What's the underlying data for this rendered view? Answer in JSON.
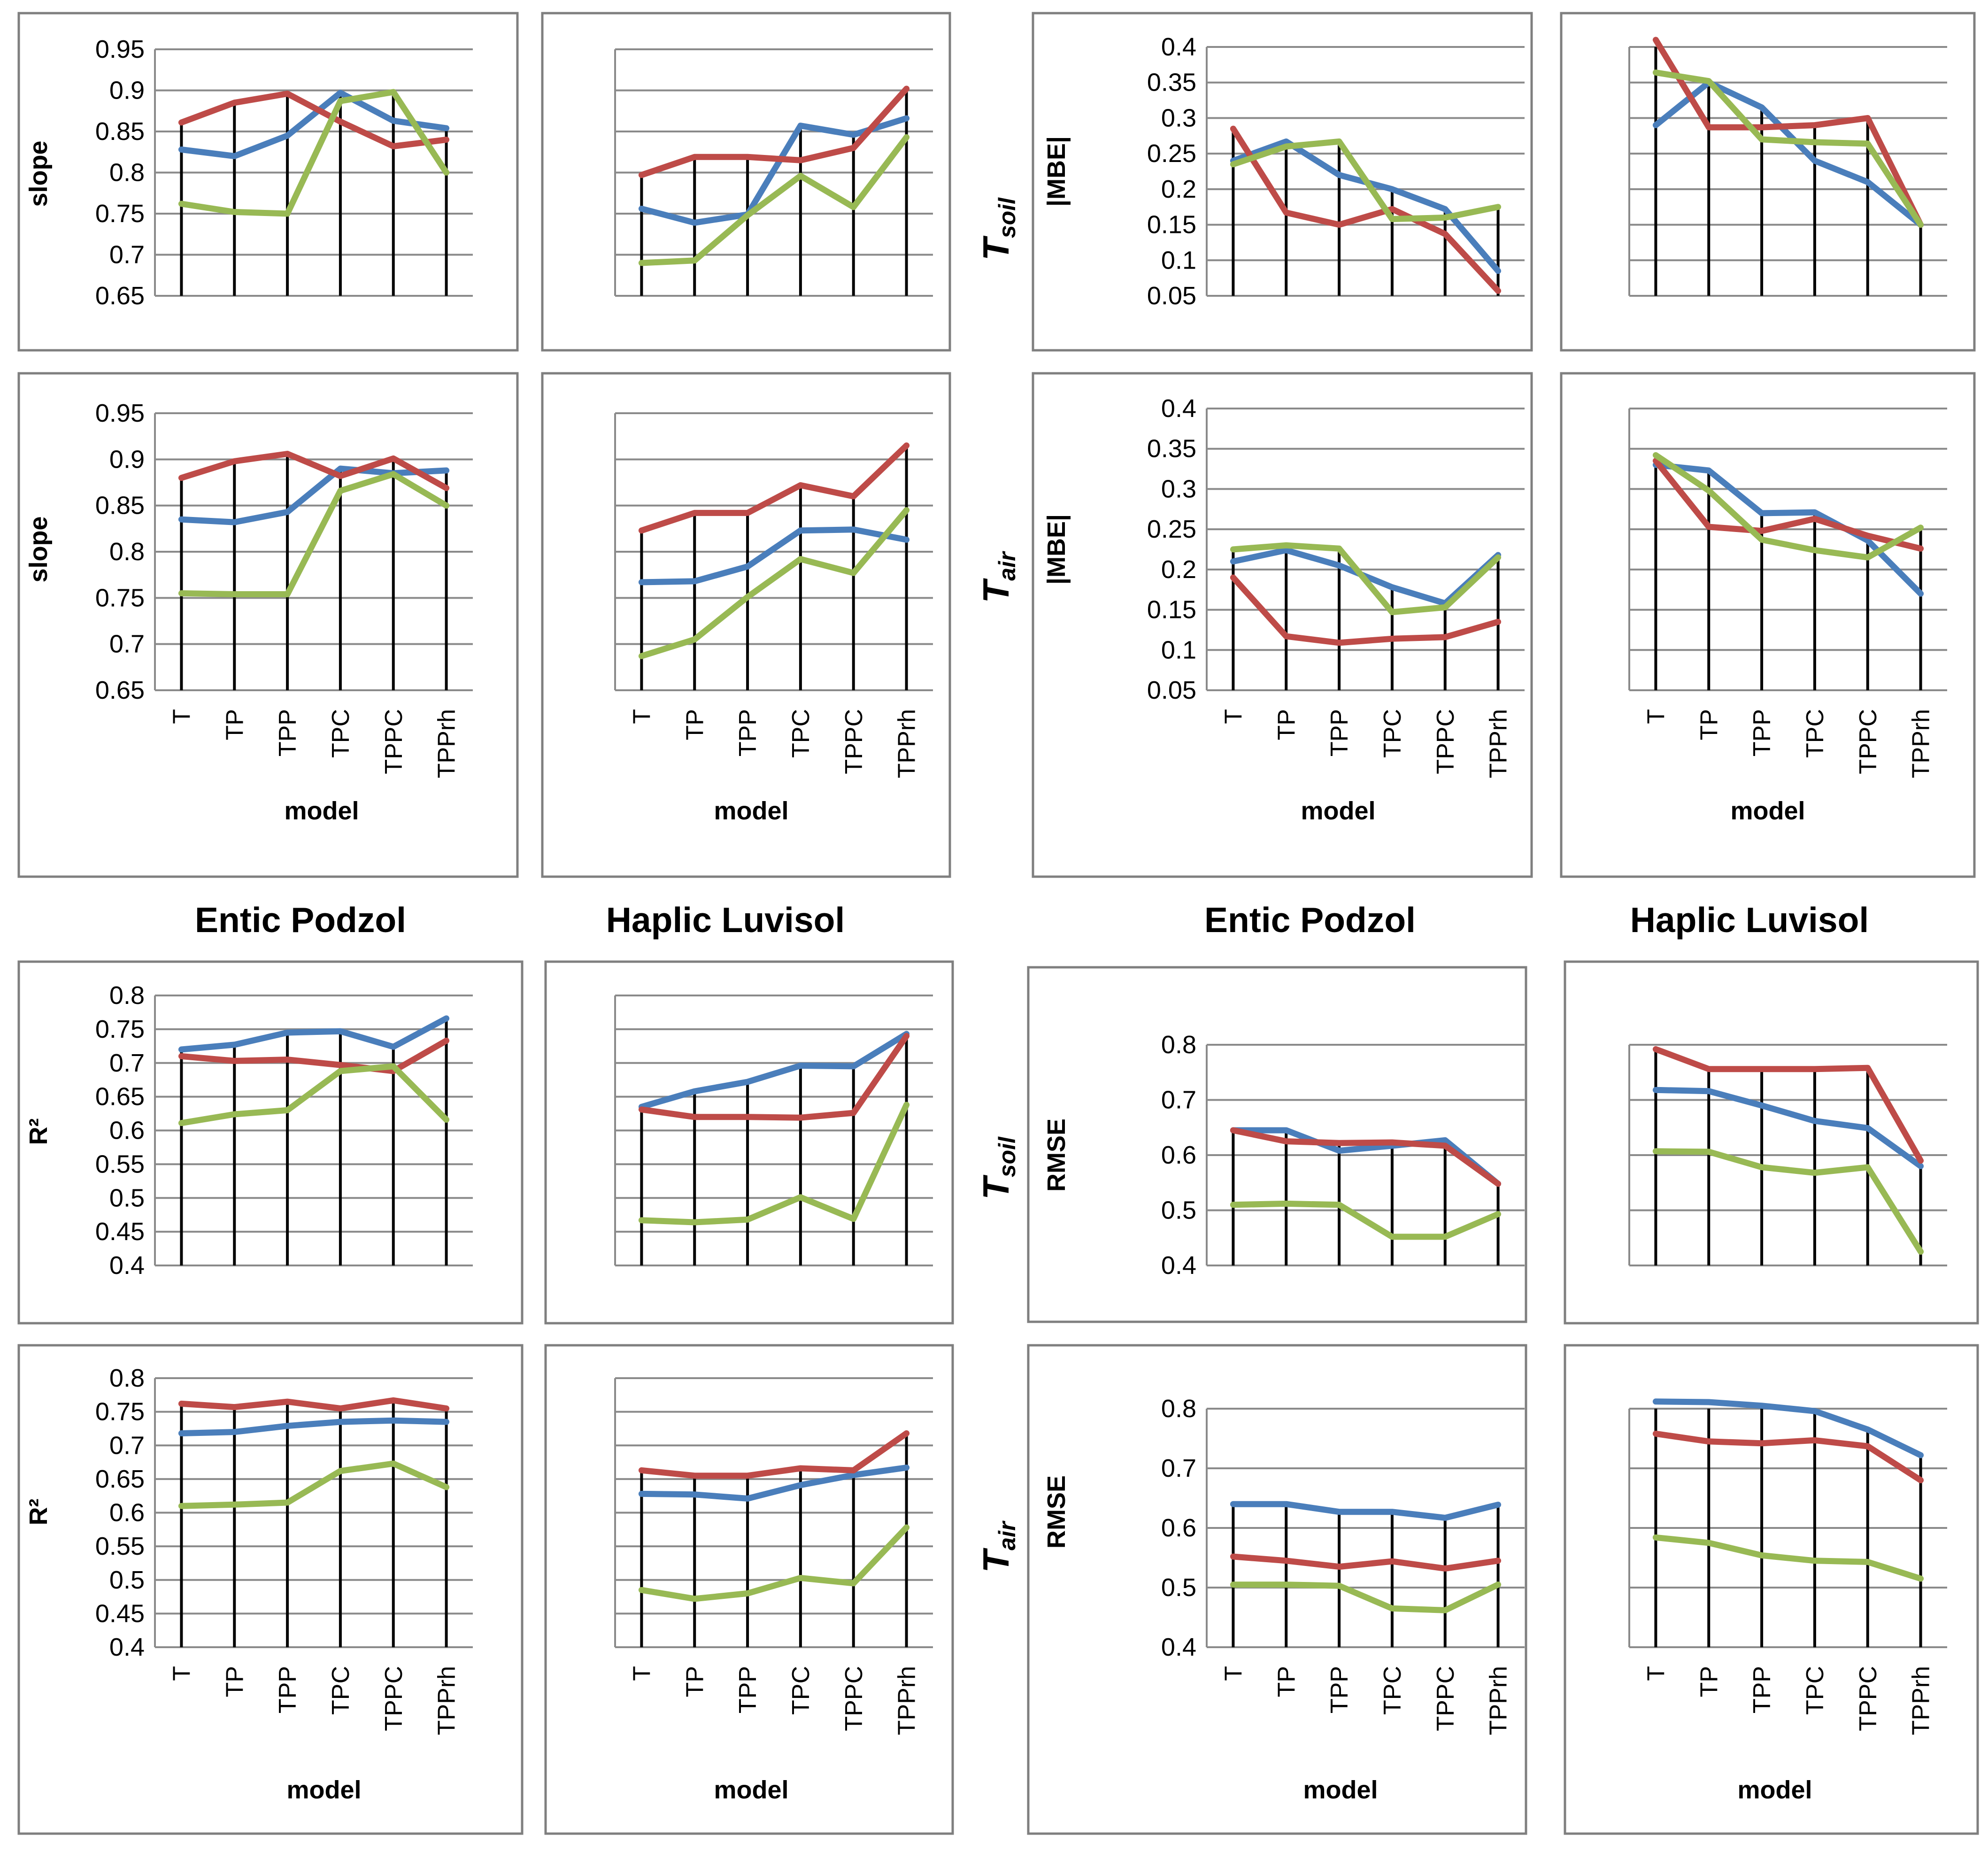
{
  "chart_data": [
    {
      "id": "slope-tsoil-entic",
      "type": "line",
      "ylabel": "slope",
      "xlabel": "",
      "ylim": [
        0.65,
        0.95
      ],
      "yticks": [
        "0.65",
        "0.7",
        "0.75",
        "0.8",
        "0.85",
        "0.9",
        "0.95"
      ],
      "categories": [
        "T",
        "TP",
        "TPP",
        "TPC",
        "TPPC",
        "TPPrh"
      ],
      "show_xticks": false,
      "series": [
        {
          "name": "blue",
          "color": "#4A7EBB",
          "values": [
            0.828,
            0.82,
            0.845,
            0.897,
            0.863,
            0.854
          ]
        },
        {
          "name": "red",
          "color": "#BE4B48",
          "values": [
            0.861,
            0.885,
            0.896,
            0.862,
            0.832,
            0.84
          ]
        },
        {
          "name": "green",
          "color": "#98B954",
          "values": [
            0.762,
            0.752,
            0.75,
            0.887,
            0.898,
            0.8
          ]
        }
      ]
    },
    {
      "id": "slope-tsoil-haplic",
      "type": "line",
      "ylabel": "",
      "xlabel": "",
      "ylim": [
        0.65,
        0.95
      ],
      "yticks": [],
      "categories": [
        "T",
        "TP",
        "TPP",
        "TPC",
        "TPPC",
        "TPPrh"
      ],
      "show_xticks": false,
      "series": [
        {
          "name": "blue",
          "color": "#4A7EBB",
          "values": [
            0.756,
            0.739,
            0.749,
            0.857,
            0.846,
            0.866
          ]
        },
        {
          "name": "red",
          "color": "#BE4B48",
          "values": [
            0.797,
            0.819,
            0.819,
            0.815,
            0.83,
            0.902
          ]
        },
        {
          "name": "green",
          "color": "#98B954",
          "values": [
            0.69,
            0.693,
            0.748,
            0.796,
            0.758,
            0.843
          ]
        }
      ]
    },
    {
      "id": "mbe-tsoil-entic",
      "type": "line",
      "ylabel": "|MBE|",
      "xlabel": "",
      "ylim": [
        0.05,
        0.4
      ],
      "yticks": [
        "0.05",
        "0.1",
        "0.15",
        "0.2",
        "0.25",
        "0.3",
        "0.35",
        "0.4"
      ],
      "categories": [
        "T",
        "TP",
        "TPP",
        "TPC",
        "TPPC",
        "TPPrh"
      ],
      "show_xticks": false,
      "series": [
        {
          "name": "blue",
          "color": "#4A7EBB",
          "values": [
            0.24,
            0.267,
            0.22,
            0.2,
            0.172,
            0.085
          ]
        },
        {
          "name": "red",
          "color": "#BE4B48",
          "values": [
            0.285,
            0.167,
            0.15,
            0.172,
            0.137,
            0.057
          ]
        },
        {
          "name": "green",
          "color": "#98B954",
          "values": [
            0.235,
            0.26,
            0.267,
            0.158,
            0.16,
            0.175
          ]
        }
      ]
    },
    {
      "id": "mbe-tsoil-haplic",
      "type": "line",
      "ylabel": "",
      "xlabel": "",
      "ylim": [
        0.05,
        0.4
      ],
      "yticks": [],
      "categories": [
        "T",
        "TP",
        "TPP",
        "TPC",
        "TPPC",
        "TPPrh"
      ],
      "show_xticks": false,
      "series": [
        {
          "name": "blue",
          "color": "#4A7EBB",
          "values": [
            0.29,
            0.35,
            0.315,
            0.24,
            0.21,
            0.15
          ]
        },
        {
          "name": "red",
          "color": "#BE4B48",
          "values": [
            0.41,
            0.287,
            0.287,
            0.29,
            0.3,
            0.15
          ]
        },
        {
          "name": "green",
          "color": "#98B954",
          "values": [
            0.364,
            0.352,
            0.27,
            0.266,
            0.264,
            0.15
          ]
        }
      ]
    },
    {
      "id": "slope-tair-entic",
      "type": "line",
      "ylabel": "slope",
      "xlabel": "model",
      "ylim": [
        0.65,
        0.95
      ],
      "yticks": [
        "0.65",
        "0.7",
        "0.75",
        "0.8",
        "0.85",
        "0.9",
        "0.95"
      ],
      "categories": [
        "T",
        "TP",
        "TPP",
        "TPC",
        "TPPC",
        "TPPrh"
      ],
      "show_xticks": true,
      "series": [
        {
          "name": "blue",
          "color": "#4A7EBB",
          "values": [
            0.835,
            0.832,
            0.843,
            0.89,
            0.885,
            0.888
          ]
        },
        {
          "name": "red",
          "color": "#BE4B48",
          "values": [
            0.88,
            0.898,
            0.906,
            0.882,
            0.901,
            0.869
          ]
        },
        {
          "name": "green",
          "color": "#98B954",
          "values": [
            0.755,
            0.754,
            0.754,
            0.866,
            0.884,
            0.85
          ]
        }
      ]
    },
    {
      "id": "slope-tair-haplic",
      "type": "line",
      "ylabel": "",
      "xlabel": "model",
      "ylim": [
        0.65,
        0.95
      ],
      "yticks": [],
      "categories": [
        "T",
        "TP",
        "TPP",
        "TPC",
        "TPPC",
        "TPPrh"
      ],
      "show_xticks": true,
      "series": [
        {
          "name": "blue",
          "color": "#4A7EBB",
          "values": [
            0.767,
            0.768,
            0.784,
            0.823,
            0.824,
            0.813
          ]
        },
        {
          "name": "red",
          "color": "#BE4B48",
          "values": [
            0.823,
            0.842,
            0.842,
            0.872,
            0.86,
            0.915
          ]
        },
        {
          "name": "green",
          "color": "#98B954",
          "values": [
            0.687,
            0.705,
            0.751,
            0.792,
            0.777,
            0.845
          ]
        }
      ]
    },
    {
      "id": "mbe-tair-entic",
      "type": "line",
      "ylabel": "|MBE|",
      "xlabel": "model",
      "ylim": [
        0.05,
        0.4
      ],
      "yticks": [
        "0.05",
        "0.1",
        "0.15",
        "0.2",
        "0.25",
        "0.3",
        "0.35",
        "0.4"
      ],
      "categories": [
        "T",
        "TP",
        "TPP",
        "TPC",
        "TPPC",
        "TPPrh"
      ],
      "show_xticks": true,
      "series": [
        {
          "name": "blue",
          "color": "#4A7EBB",
          "values": [
            0.21,
            0.224,
            0.205,
            0.178,
            0.158,
            0.218
          ]
        },
        {
          "name": "red",
          "color": "#BE4B48",
          "values": [
            0.19,
            0.117,
            0.109,
            0.114,
            0.116,
            0.135
          ]
        },
        {
          "name": "green",
          "color": "#98B954",
          "values": [
            0.225,
            0.23,
            0.226,
            0.147,
            0.153,
            0.215
          ]
        }
      ]
    },
    {
      "id": "mbe-tair-haplic",
      "type": "line",
      "ylabel": "",
      "xlabel": "model",
      "ylim": [
        0.05,
        0.4
      ],
      "yticks": [],
      "categories": [
        "T",
        "TP",
        "TPP",
        "TPC",
        "TPPC",
        "TPPrh"
      ],
      "show_xticks": true,
      "series": [
        {
          "name": "blue",
          "color": "#4A7EBB",
          "values": [
            0.33,
            0.323,
            0.27,
            0.271,
            0.236,
            0.17
          ]
        },
        {
          "name": "red",
          "color": "#BE4B48",
          "values": [
            0.335,
            0.253,
            0.248,
            0.263,
            0.242,
            0.226
          ]
        },
        {
          "name": "green",
          "color": "#98B954",
          "values": [
            0.342,
            0.298,
            0.237,
            0.224,
            0.215,
            0.252
          ]
        }
      ]
    },
    {
      "id": "r2-tsoil-entic",
      "type": "line",
      "ylabel": "R²",
      "xlabel": "",
      "ylim": [
        0.4,
        0.8
      ],
      "yticks": [
        "0.4",
        "0.45",
        "0.5",
        "0.55",
        "0.6",
        "0.65",
        "0.7",
        "0.75",
        "0.8"
      ],
      "categories": [
        "T",
        "TP",
        "TPP",
        "TPC",
        "TPPC",
        "TPPrh"
      ],
      "show_xticks": false,
      "series": [
        {
          "name": "blue",
          "color": "#4A7EBB",
          "values": [
            0.72,
            0.727,
            0.745,
            0.747,
            0.724,
            0.766
          ]
        },
        {
          "name": "red",
          "color": "#BE4B48",
          "values": [
            0.71,
            0.703,
            0.705,
            0.697,
            0.688,
            0.733
          ]
        },
        {
          "name": "green",
          "color": "#98B954",
          "values": [
            0.611,
            0.624,
            0.63,
            0.688,
            0.695,
            0.616
          ]
        }
      ]
    },
    {
      "id": "r2-tsoil-haplic",
      "type": "line",
      "ylabel": "",
      "xlabel": "",
      "ylim": [
        0.4,
        0.8
      ],
      "yticks": [],
      "categories": [
        "T",
        "TP",
        "TPP",
        "TPC",
        "TPPC",
        "TPPrh"
      ],
      "show_xticks": false,
      "series": [
        {
          "name": "blue",
          "color": "#4A7EBB",
          "values": [
            0.635,
            0.658,
            0.672,
            0.696,
            0.695,
            0.743
          ]
        },
        {
          "name": "red",
          "color": "#BE4B48",
          "values": [
            0.631,
            0.62,
            0.62,
            0.619,
            0.626,
            0.74
          ]
        },
        {
          "name": "green",
          "color": "#98B954",
          "values": [
            0.467,
            0.464,
            0.468,
            0.501,
            0.469,
            0.638
          ]
        }
      ]
    },
    {
      "id": "rmse-tsoil-entic",
      "type": "line",
      "ylabel": "RMSE",
      "xlabel": "",
      "ylim": [
        0.4,
        0.8
      ],
      "yticks": [
        "0.4",
        "0.5",
        "0.6",
        "0.7",
        "0.8"
      ],
      "categories": [
        "T",
        "TP",
        "TPP",
        "TPC",
        "TPPC",
        "TPPrh"
      ],
      "show_xticks": false,
      "series": [
        {
          "name": "blue",
          "color": "#4A7EBB",
          "values": [
            0.645,
            0.645,
            0.608,
            0.617,
            0.627,
            0.548
          ]
        },
        {
          "name": "red",
          "color": "#BE4B48",
          "values": [
            0.645,
            0.625,
            0.622,
            0.623,
            0.617,
            0.548
          ]
        },
        {
          "name": "green",
          "color": "#98B954",
          "values": [
            0.51,
            0.512,
            0.51,
            0.452,
            0.452,
            0.493
          ]
        }
      ]
    },
    {
      "id": "rmse-tsoil-haplic",
      "type": "line",
      "ylabel": "",
      "xlabel": "",
      "ylim": [
        0.4,
        0.8
      ],
      "yticks": [],
      "categories": [
        "T",
        "TP",
        "TPP",
        "TPC",
        "TPPC",
        "TPPrh"
      ],
      "show_xticks": false,
      "series": [
        {
          "name": "blue",
          "color": "#4A7EBB",
          "values": [
            0.718,
            0.716,
            0.69,
            0.662,
            0.649,
            0.58
          ]
        },
        {
          "name": "red",
          "color": "#BE4B48",
          "values": [
            0.792,
            0.756,
            0.756,
            0.756,
            0.758,
            0.59
          ]
        },
        {
          "name": "green",
          "color": "#98B954",
          "values": [
            0.607,
            0.606,
            0.578,
            0.568,
            0.578,
            0.425
          ]
        }
      ]
    },
    {
      "id": "r2-tair-entic",
      "type": "line",
      "ylabel": "R²",
      "xlabel": "model",
      "ylim": [
        0.4,
        0.8
      ],
      "yticks": [
        "0.4",
        "0.45",
        "0.5",
        "0.55",
        "0.6",
        "0.65",
        "0.7",
        "0.75",
        "0.8"
      ],
      "categories": [
        "T",
        "TP",
        "TPP",
        "TPC",
        "TPPC",
        "TPPrh"
      ],
      "show_xticks": true,
      "series": [
        {
          "name": "blue",
          "color": "#4A7EBB",
          "values": [
            0.718,
            0.72,
            0.729,
            0.735,
            0.737,
            0.735
          ]
        },
        {
          "name": "red",
          "color": "#BE4B48",
          "values": [
            0.762,
            0.757,
            0.765,
            0.755,
            0.767,
            0.755
          ]
        },
        {
          "name": "green",
          "color": "#98B954",
          "values": [
            0.61,
            0.612,
            0.615,
            0.662,
            0.673,
            0.638
          ]
        }
      ]
    },
    {
      "id": "r2-tair-haplic",
      "type": "line",
      "ylabel": "",
      "xlabel": "model",
      "ylim": [
        0.4,
        0.8
      ],
      "yticks": [],
      "categories": [
        "T",
        "TP",
        "TPP",
        "TPC",
        "TPPC",
        "TPPrh"
      ],
      "show_xticks": true,
      "series": [
        {
          "name": "blue",
          "color": "#4A7EBB",
          "values": [
            0.628,
            0.627,
            0.621,
            0.641,
            0.656,
            0.667
          ]
        },
        {
          "name": "red",
          "color": "#BE4B48",
          "values": [
            0.663,
            0.655,
            0.655,
            0.666,
            0.663,
            0.718
          ]
        },
        {
          "name": "green",
          "color": "#98B954",
          "values": [
            0.485,
            0.472,
            0.48,
            0.503,
            0.495,
            0.578
          ]
        }
      ]
    },
    {
      "id": "rmse-tair-entic",
      "type": "line",
      "ylabel": "RMSE",
      "xlabel": "model",
      "ylim": [
        0.4,
        0.8
      ],
      "yticks": [
        "0.4",
        "0.5",
        "0.6",
        "0.7",
        "0.8"
      ],
      "categories": [
        "T",
        "TP",
        "TPP",
        "TPC",
        "TPPC",
        "TPPrh"
      ],
      "show_xticks": true,
      "series": [
        {
          "name": "blue",
          "color": "#4A7EBB",
          "values": [
            0.64,
            0.64,
            0.627,
            0.627,
            0.617,
            0.639
          ]
        },
        {
          "name": "red",
          "color": "#BE4B48",
          "values": [
            0.552,
            0.545,
            0.535,
            0.544,
            0.532,
            0.545
          ]
        },
        {
          "name": "green",
          "color": "#98B954",
          "values": [
            0.505,
            0.505,
            0.503,
            0.465,
            0.462,
            0.505
          ]
        }
      ]
    },
    {
      "id": "rmse-tair-haplic",
      "type": "line",
      "ylabel": "",
      "xlabel": "model",
      "ylim": [
        0.4,
        0.8
      ],
      "yticks": [],
      "categories": [
        "T",
        "TP",
        "TPP",
        "TPC",
        "TPPC",
        "TPPrh"
      ],
      "show_xticks": true,
      "series": [
        {
          "name": "blue",
          "color": "#4A7EBB",
          "values": [
            0.812,
            0.811,
            0.805,
            0.796,
            0.765,
            0.722
          ]
        },
        {
          "name": "red",
          "color": "#BE4B48",
          "values": [
            0.758,
            0.745,
            0.742,
            0.747,
            0.737,
            0.68
          ]
        },
        {
          "name": "green",
          "color": "#98B954",
          "values": [
            0.584,
            0.575,
            0.554,
            0.545,
            0.543,
            0.515
          ]
        }
      ]
    }
  ],
  "panel_titles": {
    "left_entic": "Entic Podzol",
    "left_haplic": "Haplic Luvisol",
    "right_entic": "Entic Podzol",
    "right_haplic": "Haplic Luvisol"
  },
  "side_labels": {
    "mbe_soil": {
      "main": "T",
      "sub": "soil"
    },
    "mbe_air": {
      "main": "T",
      "sub": "air"
    },
    "rmse_soil": {
      "main": "T",
      "sub": "soil"
    },
    "rmse_air": {
      "main": "T",
      "sub": "air"
    }
  }
}
